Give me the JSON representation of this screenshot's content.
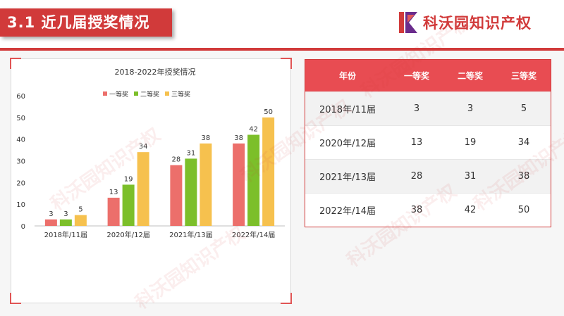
{
  "header": {
    "title": "3.1 近几届授奖情况",
    "brand_name": "科沃园知识产权",
    "logo_letter": "K"
  },
  "table": {
    "headers": [
      "年份",
      "一等奖",
      "二等奖",
      "三等奖"
    ],
    "rows": [
      [
        "2018年/11届",
        "3",
        "3",
        "5"
      ],
      [
        "2020年/12届",
        "13",
        "19",
        "34"
      ],
      [
        "2021年/13届",
        "28",
        "31",
        "38"
      ],
      [
        "2022年/14届",
        "38",
        "42",
        "50"
      ]
    ]
  },
  "chart_data": {
    "type": "bar",
    "title": "2018-2022年授奖情况",
    "categories": [
      "2018年/11届",
      "2020年/12届",
      "2021年/13届",
      "2022年/14届"
    ],
    "series": [
      {
        "name": "一等奖",
        "values": [
          3,
          13,
          28,
          38
        ],
        "color": "#ec6f6b"
      },
      {
        "name": "二等奖",
        "values": [
          3,
          19,
          31,
          42
        ],
        "color": "#7cbf2a"
      },
      {
        "name": "三等奖",
        "values": [
          5,
          34,
          38,
          50
        ],
        "color": "#f6c14e"
      }
    ],
    "ylim": [
      0,
      60
    ],
    "yticks": [
      0,
      10,
      20,
      30,
      40,
      50,
      60
    ],
    "grid": false,
    "legend": "top-center",
    "data_labels": true
  },
  "colors": {
    "accent": "#d13a3a",
    "table_header": "#e84c52"
  }
}
